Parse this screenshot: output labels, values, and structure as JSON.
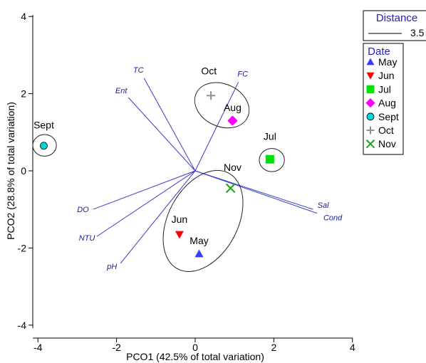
{
  "chart_data": {
    "type": "scatter",
    "title": "",
    "xlabel": "PCO1 (42.5% of total variation)",
    "ylabel": "PCO2 (28.8% of total variation)",
    "xlim": [
      -4,
      4
    ],
    "ylim": [
      -4,
      4
    ],
    "xticks": [
      -4,
      -2,
      0,
      2,
      4
    ],
    "yticks": [
      -4,
      -2,
      0,
      2,
      4
    ],
    "grid": false,
    "legend_position": "right",
    "points": [
      {
        "name": "May",
        "x": 0.1,
        "y": -2.15,
        "color": "#3b3bff",
        "marker": "triangle-up"
      },
      {
        "name": "Jun",
        "x": -0.4,
        "y": -1.65,
        "color": "#ff0000",
        "marker": "triangle-down"
      },
      {
        "name": "Jul",
        "x": 1.9,
        "y": 0.3,
        "color": "#00e000",
        "marker": "square"
      },
      {
        "name": "Aug",
        "x": 0.95,
        "y": 1.3,
        "color": "#ff00ff",
        "marker": "diamond"
      },
      {
        "name": "Sept",
        "x": -3.85,
        "y": 0.65,
        "color": "#00d8d8",
        "marker": "circle"
      },
      {
        "name": "Oct",
        "x": 0.4,
        "y": 1.95,
        "color": "#909090",
        "marker": "plus"
      },
      {
        "name": "Nov",
        "x": 0.9,
        "y": -0.45,
        "color": "#1f9e1f",
        "marker": "cross"
      }
    ],
    "vectors": [
      {
        "name": "TC",
        "x": -1.3,
        "y": 2.4
      },
      {
        "name": "Ent",
        "x": -1.7,
        "y": 1.9
      },
      {
        "name": "FC",
        "x": 1.1,
        "y": 2.3
      },
      {
        "name": "DO",
        "x": -2.6,
        "y": -1.0
      },
      {
        "name": "NTU",
        "x": -2.5,
        "y": -1.7
      },
      {
        "name": "pH",
        "x": -1.9,
        "y": -2.4
      },
      {
        "name": "Sal",
        "x": 3.0,
        "y": -1.0
      },
      {
        "name": "Cond",
        "x": 3.1,
        "y": -1.1
      }
    ],
    "clusters": [
      {
        "members": [
          "Sept"
        ],
        "label": "Sept",
        "label_x": -3.85,
        "label_y": 1.1,
        "cx": -3.83,
        "cy": 0.66,
        "rx": 0.3,
        "ry": 0.28,
        "rot": 0
      },
      {
        "members": [
          "Oct",
          "Aug"
        ],
        "label": "Oct",
        "label_x": 0.35,
        "label_y": 2.5,
        "cx": 0.68,
        "cy": 1.7,
        "rx": 0.72,
        "ry": 0.55,
        "rot": 25
      },
      {
        "members": [
          "Jul"
        ],
        "label": "Jul",
        "label_x": 1.9,
        "label_y": 0.8,
        "cx": 1.95,
        "cy": 0.28,
        "rx": 0.32,
        "ry": 0.3,
        "rot": 0
      },
      {
        "members": [
          "Nov",
          "Jun",
          "May"
        ],
        "label": "Nov",
        "label_x": 0.95,
        "label_y": 0.0,
        "cx": 0.2,
        "cy": -1.3,
        "rx": 1.38,
        "ry": 0.9,
        "rot": -62
      }
    ],
    "group_labels": [
      {
        "text": "Aug",
        "x": 0.95,
        "y": 1.55
      },
      {
        "text": "Jun",
        "x": -0.4,
        "y": -1.35
      },
      {
        "text": "May",
        "x": 0.1,
        "y": -1.9
      }
    ]
  },
  "legend_distance": {
    "title": "Distance",
    "value_label": "3.5"
  },
  "legend_date": {
    "title": "Date",
    "items": [
      {
        "label": "May",
        "color": "#3b3bff",
        "marker": "triangle-up"
      },
      {
        "label": "Jun",
        "color": "#ff0000",
        "marker": "triangle-down"
      },
      {
        "label": "Jul",
        "color": "#00e000",
        "marker": "square"
      },
      {
        "label": "Aug",
        "color": "#ff00ff",
        "marker": "diamond"
      },
      {
        "label": "Sept",
        "color": "#00d8d8",
        "marker": "circle"
      },
      {
        "label": "Oct",
        "color": "#909090",
        "marker": "plus"
      },
      {
        "label": "Nov",
        "color": "#1f9e1f",
        "marker": "cross"
      }
    ]
  },
  "colors": {
    "vector": "#3a3acc",
    "vector_label": "#1a1a9c",
    "legend_title": "#2020c0"
  }
}
